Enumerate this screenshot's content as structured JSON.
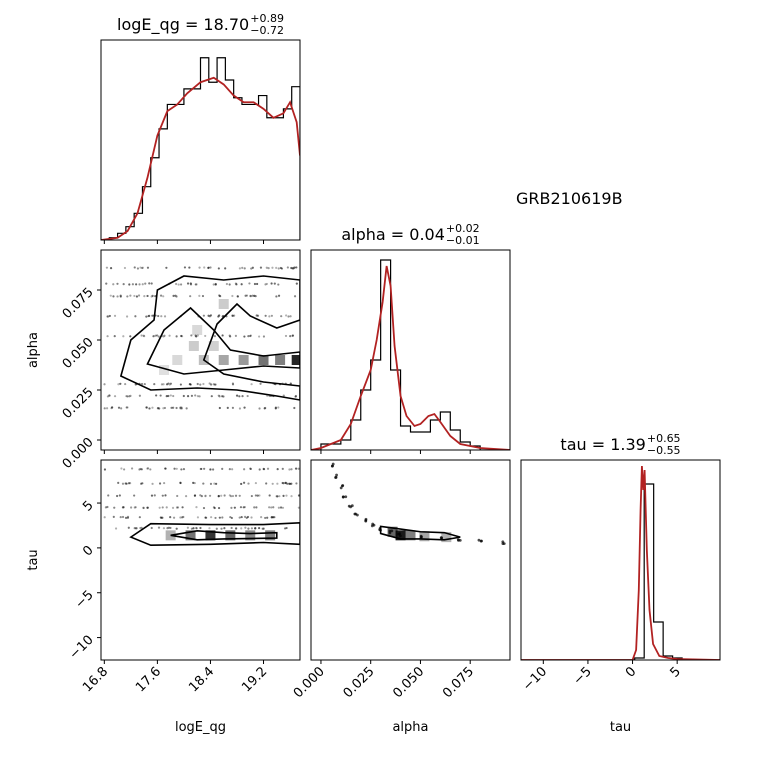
{
  "chart_data": {
    "type": "corner",
    "annotation": "GRB210619B",
    "colors": {
      "histogram": "#000000",
      "kde": "#b22222",
      "density": "#000000"
    },
    "parameters": [
      {
        "name": "logE_qg",
        "title_prefix": "logE_qg = 18.70",
        "err_plus": "+0.89",
        "err_minus": "−0.72",
        "range": [
          16.75,
          19.75
        ],
        "ticks": [
          16.8,
          17.6,
          18.4,
          19.2
        ],
        "tick_labels": [
          "16.8",
          "17.6",
          "18.4",
          "19.2"
        ],
        "hist_values": [
          0.0,
          0.01,
          0.03,
          0.06,
          0.12,
          0.24,
          0.37,
          0.5,
          0.61,
          0.61,
          0.68,
          0.68,
          0.82,
          0.71,
          0.82,
          0.72,
          0.64,
          0.61,
          0.61,
          0.65,
          0.55,
          0.55,
          0.59,
          0.69
        ],
        "kde": [
          [
            16.75,
            0.0
          ],
          [
            17.0,
            0.01
          ],
          [
            17.15,
            0.04
          ],
          [
            17.3,
            0.12
          ],
          [
            17.45,
            0.28
          ],
          [
            17.6,
            0.47
          ],
          [
            17.75,
            0.58
          ],
          [
            17.9,
            0.61
          ],
          [
            18.05,
            0.66
          ],
          [
            18.25,
            0.71
          ],
          [
            18.45,
            0.73
          ],
          [
            18.6,
            0.7
          ],
          [
            18.75,
            0.65
          ],
          [
            18.9,
            0.62
          ],
          [
            19.05,
            0.62
          ],
          [
            19.2,
            0.59
          ],
          [
            19.35,
            0.55
          ],
          [
            19.5,
            0.57
          ],
          [
            19.6,
            0.62
          ],
          [
            19.7,
            0.53
          ],
          [
            19.75,
            0.38
          ]
        ],
        "hist_ylim": [
          0,
          0.9
        ]
      },
      {
        "name": "alpha",
        "title_prefix": "alpha = 0.04",
        "err_plus": "+0.02",
        "err_minus": "−0.01",
        "range": [
          -0.005,
          0.095
        ],
        "ticks": [
          0.0,
          0.025,
          0.05,
          0.075
        ],
        "tick_labels": [
          "0.000",
          "0.025",
          "0.050",
          "0.075"
        ],
        "hist_values": [
          0.0,
          0.03,
          0.03,
          0.05,
          0.15,
          0.3,
          0.45,
          0.95,
          0.4,
          0.12,
          0.09,
          0.09,
          0.15,
          0.19,
          0.1,
          0.04,
          0.02,
          0.0,
          0.0,
          0.0
        ],
        "kde": [
          [
            -0.005,
            0.0
          ],
          [
            0.0,
            0.01
          ],
          [
            0.005,
            0.03
          ],
          [
            0.01,
            0.05
          ],
          [
            0.015,
            0.13
          ],
          [
            0.02,
            0.27
          ],
          [
            0.025,
            0.4
          ],
          [
            0.028,
            0.55
          ],
          [
            0.031,
            0.74
          ],
          [
            0.033,
            0.92
          ],
          [
            0.035,
            0.82
          ],
          [
            0.037,
            0.52
          ],
          [
            0.04,
            0.27
          ],
          [
            0.043,
            0.17
          ],
          [
            0.047,
            0.12
          ],
          [
            0.05,
            0.13
          ],
          [
            0.054,
            0.17
          ],
          [
            0.057,
            0.18
          ],
          [
            0.06,
            0.14
          ],
          [
            0.065,
            0.07
          ],
          [
            0.07,
            0.03
          ],
          [
            0.08,
            0.01
          ],
          [
            0.095,
            0.0
          ]
        ],
        "hist_ylim": [
          0,
          1.0
        ]
      },
      {
        "name": "tau",
        "title_prefix": "tau = 1.39",
        "err_plus": "+0.65",
        "err_minus": "−0.55",
        "range": [
          -12.5,
          9.8
        ],
        "ticks": [
          -10,
          -5,
          0,
          5
        ],
        "tick_labels": [
          "−10",
          "−5",
          "0",
          "5"
        ],
        "hist_values": [
          0.0,
          0.0,
          0.0,
          0.0,
          0.0,
          0.0,
          0.0,
          0.0,
          0.0,
          0.0,
          0.0,
          0.0,
          0.01,
          0.88,
          0.19,
          0.02,
          0.01,
          0.0,
          0.0,
          0.0,
          0.0
        ],
        "kde": [
          [
            -12.5,
            0.0
          ],
          [
            0.0,
            0.0
          ],
          [
            0.4,
            0.05
          ],
          [
            0.7,
            0.35
          ],
          [
            0.9,
            0.75
          ],
          [
            1.05,
            0.97
          ],
          [
            1.2,
            0.85
          ],
          [
            1.35,
            0.95
          ],
          [
            1.6,
            0.55
          ],
          [
            1.9,
            0.25
          ],
          [
            2.3,
            0.08
          ],
          [
            3.0,
            0.02
          ],
          [
            4.0,
            0.01
          ],
          [
            5.0,
            0.005
          ],
          [
            9.8,
            0.0
          ]
        ],
        "hist_ylim": [
          0,
          1.0
        ]
      }
    ],
    "y_axes": {
      "alpha": {
        "range": [
          -0.005,
          0.095
        ],
        "ticks": [
          0.0,
          0.025,
          0.05,
          0.075
        ],
        "tick_labels": [
          "0.000",
          "0.025",
          "0.050",
          "0.075"
        ]
      },
      "tau": {
        "range": [
          -12.5,
          9.8
        ],
        "ticks": [
          -10,
          -5,
          0,
          5
        ],
        "tick_labels": [
          "−10",
          "−5",
          "0",
          "5"
        ]
      }
    },
    "pairs": [
      {
        "x": "logE_qg",
        "y": "alpha",
        "contours": [
          [
            [
              17.05,
              0.032
            ],
            [
              17.2,
              0.05
            ],
            [
              17.55,
              0.06
            ],
            [
              17.6,
              0.075
            ],
            [
              18.0,
              0.082
            ],
            [
              18.6,
              0.08
            ],
            [
              19.2,
              0.082
            ],
            [
              19.75,
              0.08
            ],
            [
              19.75,
              0.06
            ],
            [
              19.4,
              0.056
            ],
            [
              19.0,
              0.062
            ],
            [
              18.8,
              0.068
            ],
            [
              18.5,
              0.058
            ],
            [
              18.3,
              0.04
            ],
            [
              18.6,
              0.033
            ],
            [
              19.2,
              0.029
            ],
            [
              19.75,
              0.027
            ],
            [
              19.75,
              0.02
            ],
            [
              19.4,
              0.022
            ],
            [
              18.8,
              0.025
            ],
            [
              18.2,
              0.026
            ],
            [
              17.5,
              0.025
            ],
            [
              17.05,
              0.032
            ]
          ],
          [
            [
              17.45,
              0.038
            ],
            [
              17.7,
              0.055
            ],
            [
              18.1,
              0.066
            ],
            [
              18.45,
              0.055
            ],
            [
              18.7,
              0.045
            ],
            [
              19.2,
              0.042
            ],
            [
              19.75,
              0.044
            ],
            [
              19.75,
              0.036
            ],
            [
              19.2,
              0.037
            ],
            [
              18.6,
              0.035
            ],
            [
              18.0,
              0.033
            ],
            [
              17.45,
              0.038
            ]
          ]
        ],
        "density": [
          [
            18.3,
            0.04,
            0.25
          ],
          [
            18.6,
            0.04,
            0.35
          ],
          [
            18.9,
            0.04,
            0.4
          ],
          [
            19.2,
            0.04,
            0.55
          ],
          [
            19.45,
            0.04,
            0.5
          ],
          [
            19.7,
            0.04,
            0.85
          ],
          [
            18.15,
            0.047,
            0.2
          ],
          [
            18.45,
            0.047,
            0.18
          ],
          [
            17.9,
            0.04,
            0.15
          ],
          [
            17.7,
            0.035,
            0.12
          ],
          [
            18.2,
            0.055,
            0.15
          ],
          [
            18.6,
            0.068,
            0.2
          ]
        ],
        "scatter_bands": [
          0.016,
          0.022,
          0.028,
          0.052,
          0.062,
          0.072,
          0.078,
          0.086
        ],
        "scatter_xrange": [
          16.8,
          19.75
        ]
      },
      {
        "x": "logE_qg",
        "y": "tau",
        "contours": [
          [
            [
              17.2,
              1.2
            ],
            [
              17.5,
              2.7
            ],
            [
              18.4,
              2.6
            ],
            [
              19.2,
              2.6
            ],
            [
              19.75,
              2.8
            ],
            [
              19.75,
              0.4
            ],
            [
              19.2,
              0.6
            ],
            [
              18.4,
              0.4
            ],
            [
              17.5,
              0.3
            ],
            [
              17.2,
              1.2
            ]
          ],
          [
            [
              17.8,
              1.4
            ],
            [
              18.2,
              1.9
            ],
            [
              18.6,
              1.7
            ],
            [
              19.0,
              1.6
            ],
            [
              19.4,
              1.7
            ],
            [
              19.4,
              1.1
            ],
            [
              18.6,
              1.0
            ],
            [
              18.2,
              0.9
            ],
            [
              17.8,
              1.4
            ]
          ]
        ],
        "density": [
          [
            18.1,
            1.4,
            0.55
          ],
          [
            18.4,
            1.4,
            0.8
          ],
          [
            18.7,
            1.4,
            0.6
          ],
          [
            19.0,
            1.4,
            0.45
          ],
          [
            19.3,
            1.4,
            0.5
          ],
          [
            17.8,
            1.4,
            0.3
          ]
        ],
        "scatter_bands": [
          2.2,
          3.4,
          4.5,
          5.8,
          7.2,
          8.8
        ],
        "scatter_xrange": [
          16.8,
          19.75
        ]
      },
      {
        "x": "alpha",
        "y": "tau",
        "contours": [
          [
            [
              0.03,
              2.4
            ],
            [
              0.04,
              2.1
            ],
            [
              0.05,
              1.8
            ],
            [
              0.062,
              1.7
            ],
            [
              0.07,
              1.2
            ],
            [
              0.062,
              0.9
            ],
            [
              0.05,
              1.0
            ],
            [
              0.04,
              1.0
            ],
            [
              0.03,
              1.6
            ],
            [
              0.03,
              2.4
            ]
          ]
        ],
        "curve": [
          [
            0.006,
            9.2
          ],
          [
            0.008,
            8.0
          ],
          [
            0.01,
            6.8
          ],
          [
            0.012,
            5.6
          ],
          [
            0.015,
            4.6
          ],
          [
            0.018,
            3.8
          ],
          [
            0.022,
            3.1
          ],
          [
            0.026,
            2.6
          ],
          [
            0.03,
            2.1
          ],
          [
            0.035,
            1.8
          ],
          [
            0.04,
            1.5
          ],
          [
            0.05,
            1.2
          ],
          [
            0.06,
            1.0
          ],
          [
            0.07,
            0.8
          ],
          [
            0.08,
            0.7
          ],
          [
            0.092,
            0.6
          ]
        ],
        "density": [
          [
            0.04,
            1.4,
            0.9
          ],
          [
            0.036,
            1.8,
            0.6
          ],
          [
            0.045,
            1.4,
            0.5
          ],
          [
            0.052,
            1.3,
            0.35
          ],
          [
            0.063,
            1.2,
            0.3
          ]
        ]
      }
    ]
  }
}
